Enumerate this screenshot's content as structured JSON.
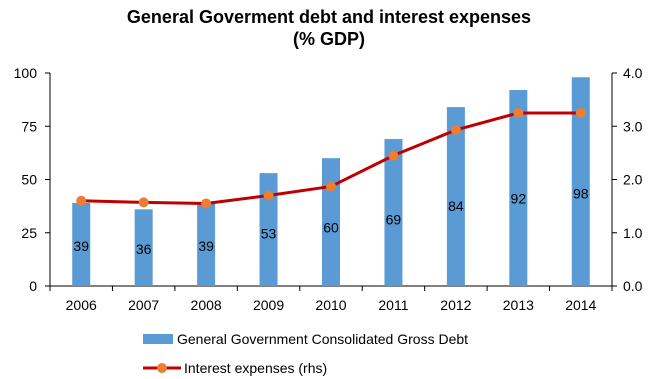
{
  "chart_data": {
    "type": "bar",
    "title_line1": "General Goverment debt and interest expenses",
    "title_line2": "(% GDP)",
    "categories": [
      "2006",
      "2007",
      "2008",
      "2009",
      "2010",
      "2011",
      "2012",
      "2013",
      "2014"
    ],
    "series": [
      {
        "name": "General Government Consolidated Gross Debt",
        "type": "bar",
        "axis": "left",
        "color": "#5B9BD5",
        "values": [
          39,
          36,
          39,
          53,
          60,
          69,
          84,
          92,
          98
        ],
        "labels": [
          "39",
          "36",
          "39",
          "53",
          "60",
          "69",
          "84",
          "92",
          "98"
        ]
      },
      {
        "name": "Interest expenses (rhs)",
        "type": "line",
        "axis": "right",
        "color": "#C00000",
        "marker_color": "#ED7D31",
        "values": [
          1.6,
          1.57,
          1.55,
          1.7,
          1.87,
          2.45,
          2.93,
          3.25,
          3.25
        ]
      }
    ],
    "y_left": {
      "min": 0,
      "max": 100,
      "ticks": [
        "0",
        "25",
        "50",
        "75",
        "100"
      ]
    },
    "y_right": {
      "min": 0,
      "max": 4,
      "ticks": [
        "0.0",
        "1.0",
        "2.0",
        "3.0",
        "4.0"
      ]
    },
    "grid": false,
    "legend_position": "bottom"
  }
}
